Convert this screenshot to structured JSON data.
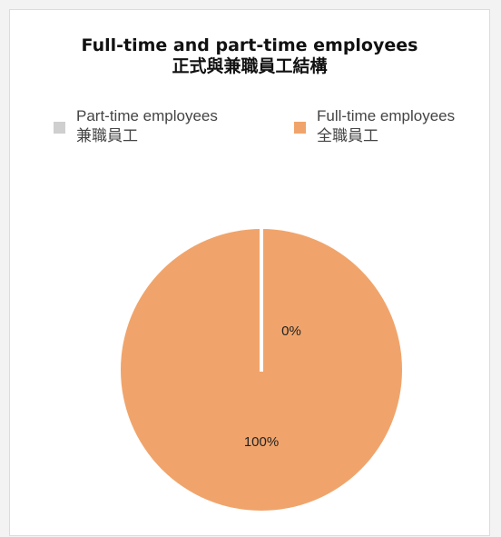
{
  "chart_data": {
    "type": "pie",
    "title": "Full-time and part-time employees",
    "subtitle": "正式與兼職員工結構",
    "legend_position": "top",
    "slices": [
      {
        "name": "Part-time employees",
        "name_zh": "兼職員工",
        "value": 0,
        "label": "0%",
        "color": "#cfcfcf"
      },
      {
        "name": "Full-time employees",
        "name_zh": "全職員工",
        "value": 100,
        "label": "100%",
        "color": "#f0a46b"
      }
    ]
  }
}
